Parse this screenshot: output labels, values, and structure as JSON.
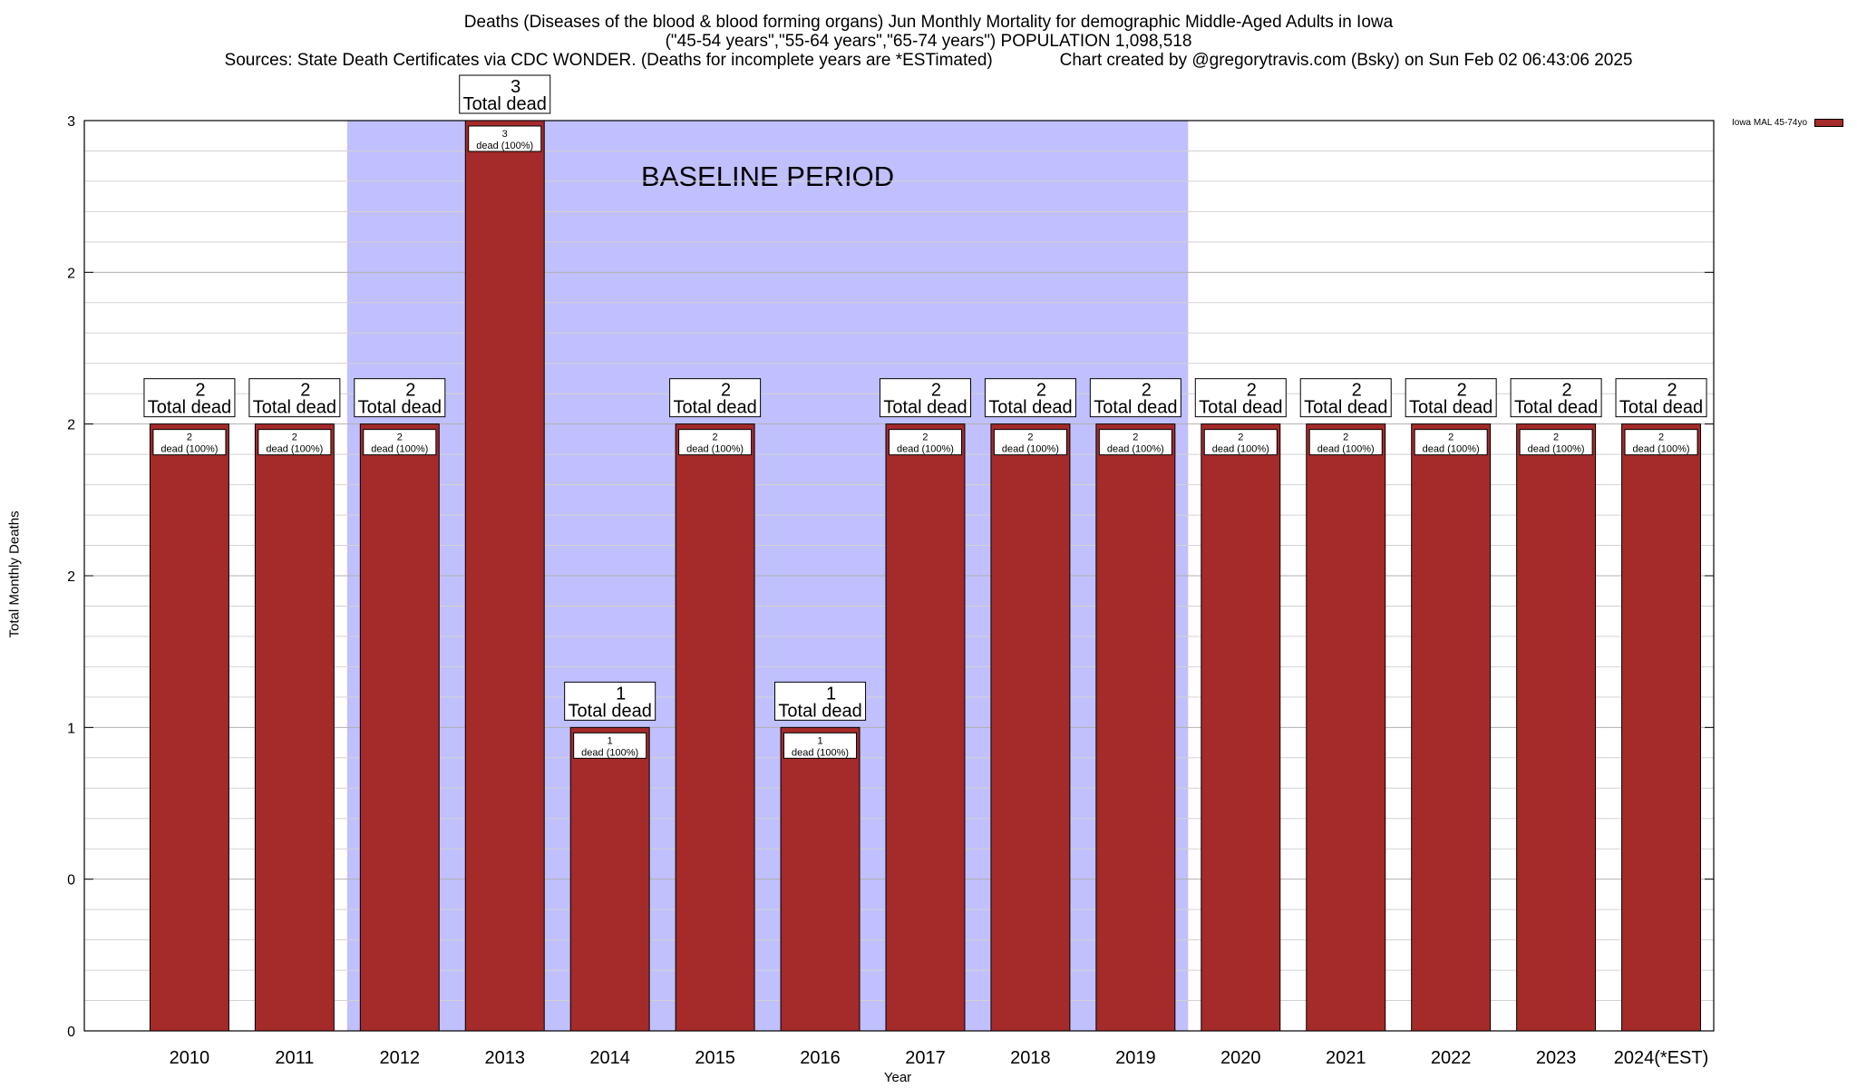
{
  "header": {
    "line1": "Deaths (Diseases of the blood & blood forming organs) Jun Monthly Mortality for demographic Middle-Aged Adults in Iowa",
    "line2": "(\"45-54 years\",\"55-64 years\",\"65-74 years\") POPULATION 1,098,518",
    "line3": "Sources: State Death Certificates via CDC WONDER. (Deaths for incomplete years are *ESTimated)              Chart created by @gregorytravis.com (Bsky) on Sun Feb 02 06:43:06 2025"
  },
  "colors": {
    "bar": "#a52a2a",
    "baseline": "#c0c0ff"
  },
  "chart_data": {
    "type": "bar",
    "xlabel": "Year",
    "ylabel": "Total Monthly Deaths",
    "categories": [
      "2010",
      "2011",
      "2012",
      "2013",
      "2014",
      "2015",
      "2016",
      "2017",
      "2018",
      "2019",
      "2020",
      "2021",
      "2022",
      "2023",
      "2024(*EST)"
    ],
    "series": [
      {
        "name": "Iowa MAL 45-74yo",
        "values": [
          2,
          2,
          2,
          3,
          1,
          2,
          1,
          2,
          2,
          2,
          2,
          2,
          2,
          2,
          2
        ]
      }
    ],
    "ylim": [
      0,
      3
    ],
    "y_tick_labels": [
      "0",
      "0",
      "1",
      "2",
      "2",
      "2",
      "3"
    ],
    "baseline_period": {
      "label": "BASELINE PERIOD",
      "from": "2012",
      "to": "2019"
    },
    "top_label_suffix": "Total dead",
    "inner_label_suffix": "dead (100%)",
    "grid": true,
    "legend": "top-right"
  }
}
